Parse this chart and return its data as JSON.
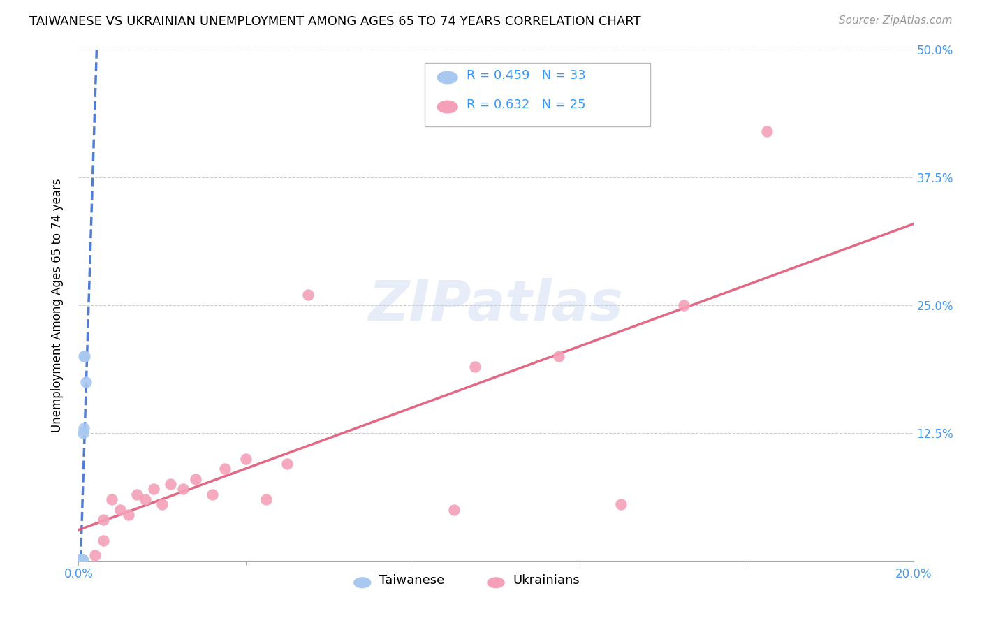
{
  "title": "TAIWANESE VS UKRAINIAN UNEMPLOYMENT AMONG AGES 65 TO 74 YEARS CORRELATION CHART",
  "source": "Source: ZipAtlas.com",
  "ylabel": "Unemployment Among Ages 65 to 74 years",
  "y_ticks": [
    0.0,
    0.125,
    0.25,
    0.375,
    0.5
  ],
  "y_tick_labels_right": [
    "",
    "12.5%",
    "25.0%",
    "37.5%",
    "50.0%"
  ],
  "xlim": [
    0.0,
    0.2
  ],
  "ylim": [
    0.0,
    0.5
  ],
  "taiwan_R": 0.459,
  "taiwan_N": 33,
  "ukraine_R": 0.632,
  "ukraine_N": 25,
  "taiwan_color": "#a8c8f0",
  "ukraine_color": "#f4a0b8",
  "taiwan_line_color": "#3366cc",
  "ukraine_line_color": "#e05878",
  "background_color": "#ffffff",
  "grid_color": "#cccccc",
  "taiwan_x": [
    0.0002,
    0.0002,
    0.0003,
    0.0003,
    0.0003,
    0.0004,
    0.0004,
    0.0004,
    0.0004,
    0.0005,
    0.0005,
    0.0005,
    0.0005,
    0.0005,
    0.0005,
    0.0006,
    0.0006,
    0.0006,
    0.0007,
    0.0007,
    0.0007,
    0.0008,
    0.0008,
    0.0008,
    0.0009,
    0.0009,
    0.001,
    0.001,
    0.0011,
    0.0012,
    0.0013,
    0.0015,
    0.0018
  ],
  "taiwan_y": [
    0.001,
    0.001,
    0.001,
    0.001,
    0.001,
    0.001,
    0.001,
    0.001,
    0.001,
    0.001,
    0.001,
    0.001,
    0.001,
    0.001,
    0.001,
    0.001,
    0.001,
    0.001,
    0.001,
    0.001,
    0.001,
    0.001,
    0.001,
    0.001,
    0.001,
    0.001,
    0.001,
    0.001,
    0.125,
    0.13,
    0.2,
    0.2,
    0.175
  ],
  "ukraine_x": [
    0.004,
    0.006,
    0.006,
    0.008,
    0.01,
    0.012,
    0.014,
    0.016,
    0.018,
    0.02,
    0.022,
    0.025,
    0.028,
    0.032,
    0.035,
    0.04,
    0.045,
    0.05,
    0.055,
    0.09,
    0.095,
    0.115,
    0.13,
    0.145,
    0.165
  ],
  "ukraine_y": [
    0.005,
    0.02,
    0.04,
    0.06,
    0.05,
    0.045,
    0.065,
    0.06,
    0.07,
    0.055,
    0.075,
    0.07,
    0.08,
    0.065,
    0.09,
    0.1,
    0.06,
    0.095,
    0.26,
    0.05,
    0.19,
    0.2,
    0.055,
    0.25,
    0.42
  ],
  "watermark_text": "ZIPatlas",
  "title_fontsize": 13,
  "label_fontsize": 12,
  "tick_fontsize": 12,
  "legend_fontsize": 13,
  "source_fontsize": 11
}
